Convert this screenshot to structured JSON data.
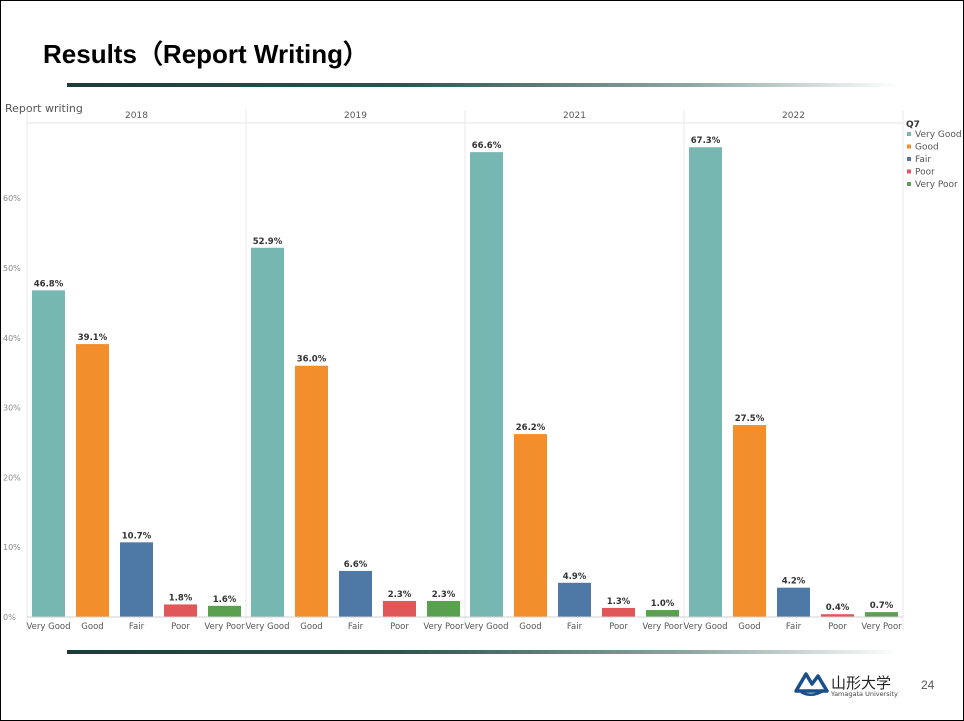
{
  "slide": {
    "title": "Results（Report Writing）",
    "page_number": "24",
    "logo_text_jp": "山形大学",
    "logo_text_en": "Yamagata University"
  },
  "chart_data": {
    "type": "bar",
    "title": "Report writing",
    "panel_field": "",
    "panels": [
      "2018",
      "2019",
      "2021",
      "2022"
    ],
    "categories": [
      "Very Good",
      "Good",
      "Fair",
      "Poor",
      "Very Poor"
    ],
    "colors": {
      "Very Good": "#76b7b2",
      "Good": "#f28e2b",
      "Fair": "#4e79a7",
      "Poor": "#e15759",
      "Very Poor": "#59a14f"
    },
    "values": {
      "2018": [
        46.8,
        39.1,
        10.7,
        1.8,
        1.6
      ],
      "2019": [
        52.9,
        36.0,
        6.6,
        2.3,
        2.3
      ],
      "2021": [
        66.6,
        26.2,
        4.9,
        1.3,
        1.0
      ],
      "2022": [
        67.3,
        27.5,
        4.2,
        0.4,
        0.7
      ]
    },
    "data_labels": {
      "2018": [
        "46.8%",
        "39.1%",
        "10.7%",
        "1.8%",
        "1.6%"
      ],
      "2019": [
        "52.9%",
        "36.0%",
        "6.6%",
        "2.3%",
        "2.3%"
      ],
      "2021": [
        "66.6%",
        "26.2%",
        "4.9%",
        "1.3%",
        "1.0%"
      ],
      "2022": [
        "67.3%",
        "27.5%",
        "4.2%",
        "0.4%",
        "0.7%"
      ]
    },
    "y_ticks": [
      "0%",
      "10%",
      "20%",
      "30%",
      "40%",
      "50%",
      "60%"
    ],
    "ylim": [
      0,
      70
    ],
    "legend": {
      "title": "Q7",
      "position": "right",
      "items": [
        "Very Good",
        "Good",
        "Fair",
        "Poor",
        "Very Poor"
      ]
    },
    "xlabel": "",
    "ylabel": ""
  }
}
